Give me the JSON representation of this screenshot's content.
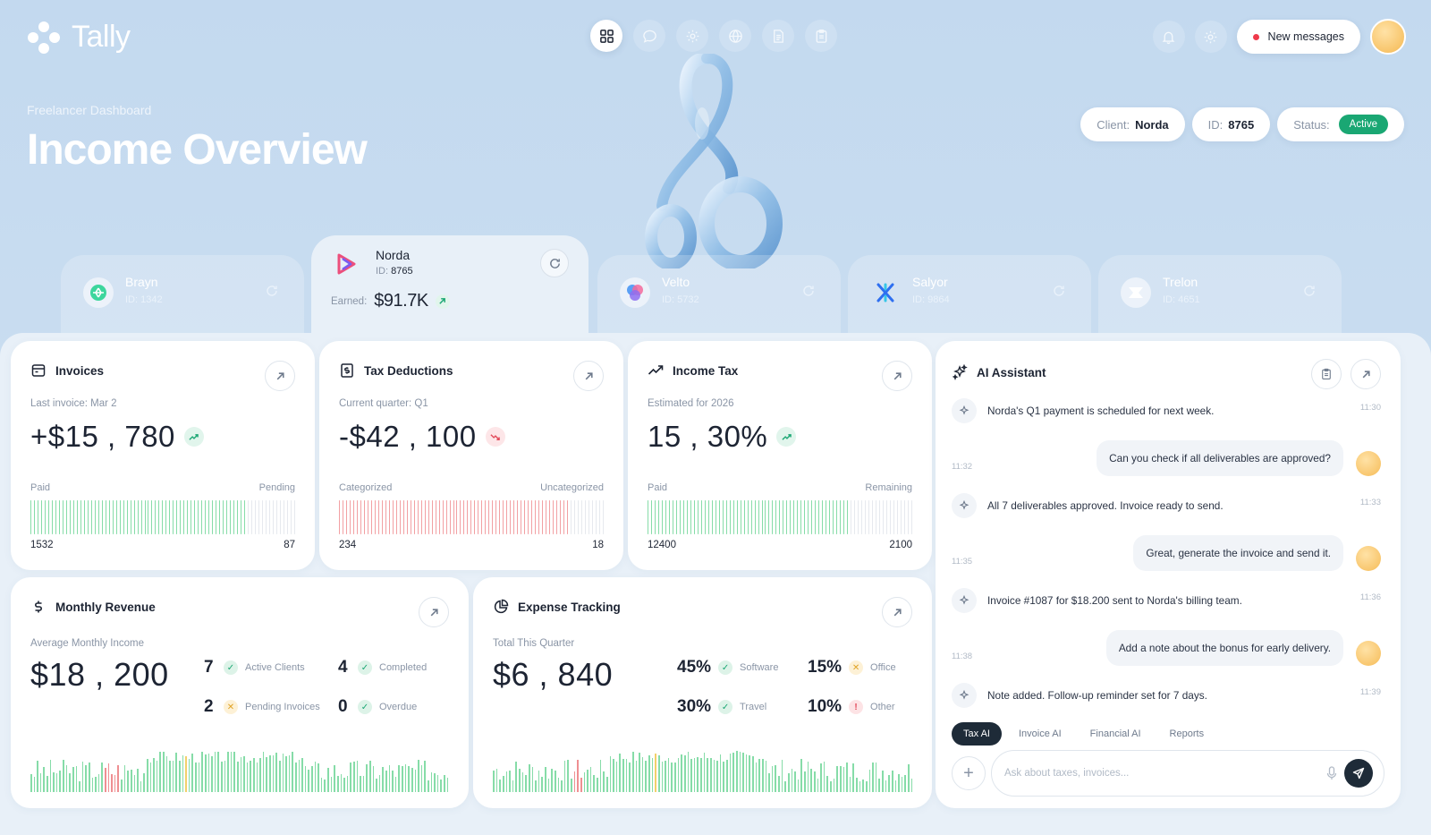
{
  "app": {
    "name": "Tally"
  },
  "topnav": {
    "icons": [
      "grid-icon",
      "chat-icon",
      "settings-icon",
      "globe-icon",
      "document-icon",
      "clipboard-icon"
    ],
    "active_index": 0
  },
  "header_right": {
    "new_messages_label": "New messages"
  },
  "hero": {
    "subtitle": "Freelancer Dashboard",
    "title": "Income Overview"
  },
  "chips": {
    "client_key": "Client:",
    "client_value": "Norda",
    "id_key": "ID:",
    "id_value": "8765",
    "status_key": "Status:",
    "status_value": "Active"
  },
  "clients": [
    {
      "name": "Brayn",
      "id": "ID: 1342"
    },
    {
      "name": "Norda",
      "id_key": "ID:",
      "id_value": "8765",
      "earned_key": "Earned:",
      "earned_value": "$91.7K"
    },
    {
      "name": "Velto",
      "id": "ID: 5732"
    },
    {
      "name": "Salyor",
      "id": "ID: 9864"
    },
    {
      "name": "Trelon",
      "id": "ID: 4651"
    }
  ],
  "cards": {
    "invoices": {
      "title": "Invoices",
      "sub": "Last invoice: Mar 2",
      "value": "+$15 , 780",
      "trend": "up",
      "left_label": "Paid",
      "right_label": "Pending",
      "left_value": "1532",
      "right_value": "87",
      "fill_fraction": 0.81,
      "fill_color": "#86dca8"
    },
    "tax": {
      "title": "Tax Deductions",
      "sub": "Current quarter: Q1",
      "value": "-$42 , 100",
      "trend": "down",
      "left_label": "Categorized",
      "right_label": "Uncategorized",
      "left_value": "234",
      "right_value": "18",
      "fill_fraction": 0.87,
      "fill_color": "#f2a0a3"
    },
    "income_tax": {
      "title": "Income Tax",
      "sub": "Estimated for 2026",
      "value": "15 , 30%",
      "trend": "up",
      "left_label": "Paid",
      "right_label": "Remaining",
      "left_value": "12400",
      "right_value": "2100",
      "fill_fraction": 0.76,
      "fill_color": "#86dca8"
    },
    "revenue": {
      "title": "Monthly Revenue",
      "sub": "Average Monthly Income",
      "value": "$18 , 200",
      "stats": [
        {
          "n": "7",
          "status": "ok",
          "label": "Active Clients"
        },
        {
          "n": "4",
          "status": "ok",
          "label": "Completed"
        },
        {
          "n": "2",
          "status": "warn",
          "label": "Pending Invoices"
        },
        {
          "n": "0",
          "status": "ok",
          "label": "Overdue"
        }
      ]
    },
    "expense": {
      "title": "Expense Tracking",
      "sub": "Total This Quarter",
      "value": "$6 , 840",
      "stats": [
        {
          "n": "45%",
          "status": "ok",
          "label": "Software"
        },
        {
          "n": "15%",
          "status": "warn",
          "label": "Office"
        },
        {
          "n": "30%",
          "status": "ok",
          "label": "Travel"
        },
        {
          "n": "10%",
          "status": "err",
          "label": "Other"
        }
      ]
    }
  },
  "ai": {
    "title": "AI Assistant",
    "messages": [
      {
        "from": "ai",
        "text": "Norda's Q1 payment is scheduled for next week.",
        "time": "11:30"
      },
      {
        "from": "user",
        "text": "Can you check if all deliverables are approved?",
        "time": "11:32"
      },
      {
        "from": "ai",
        "text": "All 7 deliverables approved. Invoice ready to send.",
        "time": "11:33"
      },
      {
        "from": "user",
        "text": "Great, generate the invoice and send it.",
        "time": "11:35"
      },
      {
        "from": "ai",
        "text": "Invoice #1087 for $18.200 sent to Norda's billing team.",
        "time": "11:36"
      },
      {
        "from": "user",
        "text": "Add a note about the bonus for early delivery.",
        "time": "11:38"
      },
      {
        "from": "ai",
        "text": "Note added. Follow-up reminder set for 7 days.",
        "time": "11:39"
      }
    ],
    "tabs": [
      "Tax AI",
      "Invoice AI",
      "Financial AI",
      "Reports"
    ],
    "active_tab": 0,
    "input_placeholder": "Ask about taxes, invoices..."
  },
  "colors": {
    "accent_dark": "#1e2b38",
    "green": "#1aa773",
    "bar_green": "#86dca8",
    "bar_red": "#f2a0a3",
    "bar_yellow": "#f2d06b",
    "bar_rose": "#ef8f92"
  }
}
